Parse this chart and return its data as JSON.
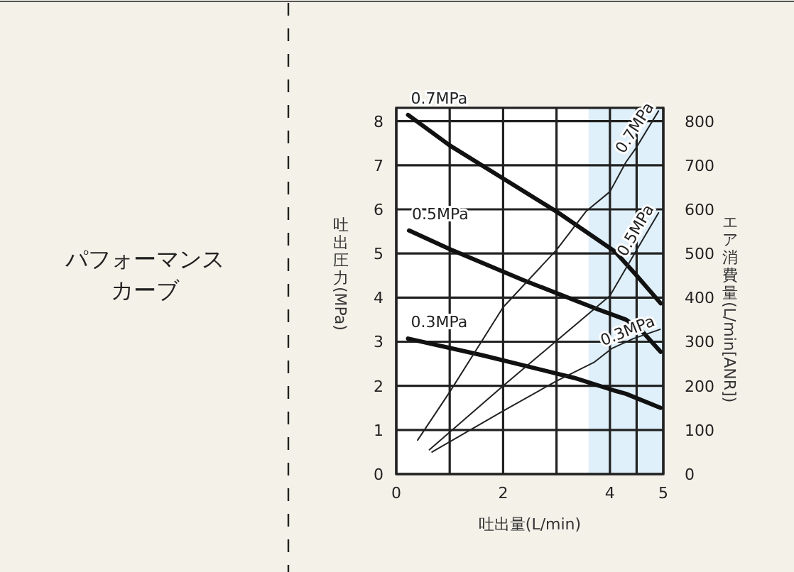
{
  "chart_data": {
    "type": "line",
    "title": "パフォーマンスカーブ",
    "xlabel": "吐出量(L/min)",
    "ylabel": "吐出圧力(MPa)",
    "y2label": "エア消費量(L/min[ANR])",
    "xlim": [
      0,
      5
    ],
    "xticks": [
      0,
      {
        "value": 1,
        "label": null
      },
      2,
      {
        "value": 3,
        "label": null
      },
      4,
      {
        "value": 4.5,
        "label": null
      },
      5
    ],
    "ylim": [
      0,
      8.3
    ],
    "yticks": [
      0,
      1,
      2,
      3,
      4,
      5,
      6,
      7,
      8
    ],
    "y2lim": [
      0,
      830
    ],
    "y2ticks": [
      0,
      100,
      200,
      300,
      400,
      500,
      600,
      700,
      800
    ],
    "grid": true,
    "bands": [
      {
        "axis": "x",
        "from": 3.6,
        "to": 5,
        "color": "#dff0fa"
      }
    ],
    "series": [
      {
        "name": "0.7MPa",
        "color": "#111111",
        "x": [
          0.22,
          1,
          2,
          3,
          4.1,
          4.5,
          4.95
        ],
        "values": [
          8.14,
          7.45,
          6.7,
          5.95,
          5.04,
          4.5,
          3.87
        ]
      },
      {
        "name": "0.5MPa",
        "color": "#111111",
        "x": [
          0.24,
          1,
          2.37,
          3.76,
          4.3,
          4.57,
          4.95
        ],
        "values": [
          5.52,
          5.1,
          4.4,
          3.74,
          3.5,
          3.28,
          2.77
        ]
      },
      {
        "name": "0.3MPa",
        "color": "#111111",
        "x": [
          0.22,
          1.62,
          3.33,
          4.09,
          4.3,
          4.95
        ],
        "values": [
          3.07,
          2.69,
          2.18,
          1.89,
          1.82,
          1.5
        ]
      },
      {
        "name": "0.7MPa",
        "color": "#222222",
        "axis": "y2",
        "x": [
          0.4,
          1,
          2,
          3,
          3.55,
          4,
          4.3,
          4.5,
          4.91
        ],
        "values": [
          77,
          186,
          378,
          508,
          595,
          640,
          707,
          741,
          823
        ]
      },
      {
        "name": "0.5MPa",
        "color": "#222222",
        "axis": "y2",
        "x": [
          0.62,
          2,
          3,
          4,
          4.5,
          4.91
        ],
        "values": [
          55,
          200,
          302,
          404,
          508,
          592
        ]
      },
      {
        "name": "0.3MPa",
        "color": "#222222",
        "axis": "y2",
        "x": [
          0.67,
          2,
          3,
          3.7,
          4.04,
          4.44,
          4.94
        ],
        "values": [
          50,
          143,
          211,
          253,
          285,
          307,
          328
        ]
      }
    ]
  }
}
